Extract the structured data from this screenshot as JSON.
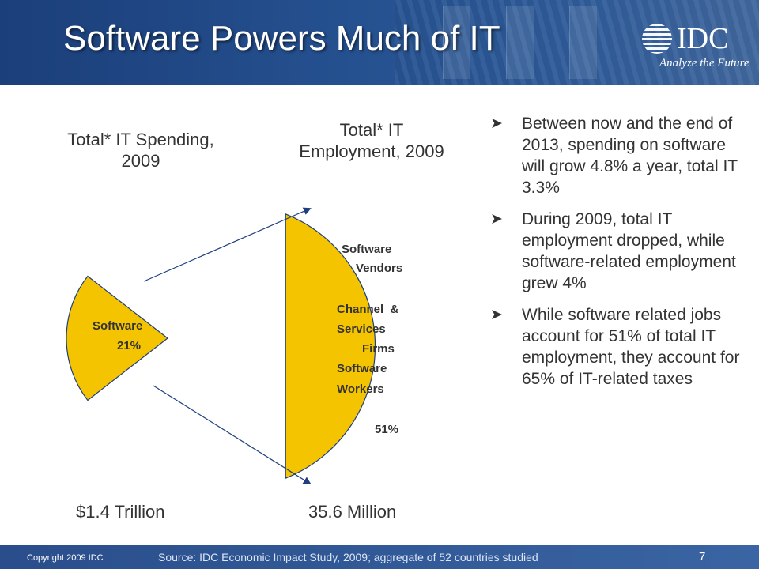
{
  "slide": {
    "title": "Software Powers Much of IT",
    "logo": {
      "name": "IDC",
      "tagline": "Analyze the Future"
    }
  },
  "chart_data": {
    "type": "pie",
    "slices": [
      {
        "chart": "Total* IT Spending, 2009",
        "label": "Software",
        "value": 21,
        "display": "21%"
      },
      {
        "chart": "Total* IT Employment, 2009",
        "label": "Software Vendors Channel & Services Firms Software Workers",
        "value": 51,
        "display": "51%"
      }
    ],
    "left": {
      "title_line1": "Total* IT Spending,",
      "title_line2": "2009",
      "slice_label": "Software",
      "slice_value": "21%",
      "total": "$1.4 Trillion"
    },
    "right": {
      "title_line1": "Total* IT",
      "title_line2": "Employment, 2009",
      "slice_lines": [
        "Software",
        "Vendors",
        "Channel  &",
        "Services",
        "Firms",
        "Software",
        "Workers"
      ],
      "slice_value": "51%",
      "total": "35.6 Million"
    },
    "colors": {
      "slice": "#f5c400",
      "arrow": "#1f3f7f",
      "outline": "#1f3f7f"
    }
  },
  "bullets": [
    "Between now and the end of 2013, spending on software will grow 4.8% a year, total IT 3.3%",
    "During 2009, total IT employment dropped, while software-related employment grew 4%",
    "While software related jobs account for 51% of total IT employment, they account for 65% of IT-related taxes"
  ],
  "footer": {
    "copyright": "Copyright 2009 IDC",
    "source": "Source:  IDC Economic Impact Study, 2009; aggregate of 52 countries studied",
    "page": "7"
  }
}
